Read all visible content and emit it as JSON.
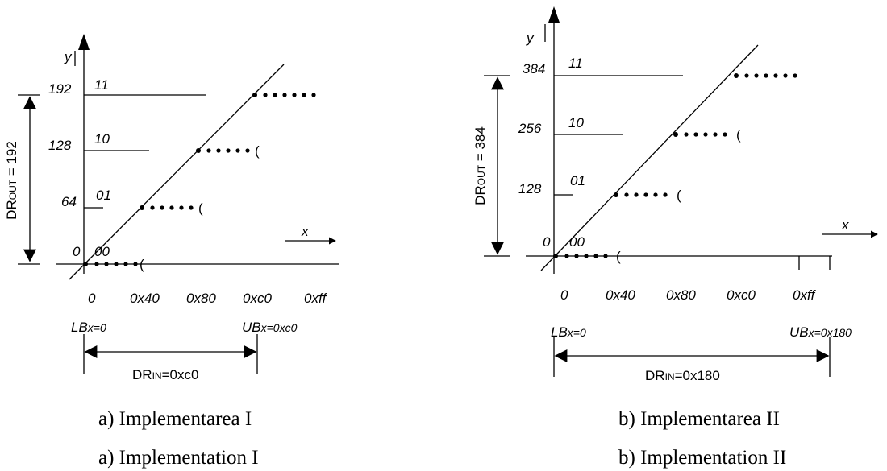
{
  "panel_a": {
    "y_axis_label": "y",
    "x_axis_label": "x",
    "y_ticks": [
      "192",
      "128",
      "64",
      "0"
    ],
    "codes": [
      "11",
      "10",
      "01",
      "00"
    ],
    "x_ticks": [
      "0",
      "0x40",
      "0x80",
      "0xc0",
      "0xff"
    ],
    "paren": "(",
    "dr_out_main": "DR",
    "dr_out_sub": "OUT",
    "dr_out_value": " = 192",
    "lb_main": "LB",
    "lb_rest": "x=0",
    "ub_main": "UB",
    "ub_rest": "x=0xc0",
    "dr_in_main": "DR",
    "dr_in_sub": "IN",
    "dr_in_value": "=0xc0"
  },
  "panel_b": {
    "y_axis_label": "y",
    "x_axis_label": "x",
    "y_ticks": [
      "384",
      "256",
      "128",
      "0"
    ],
    "codes": [
      "11",
      "10",
      "01",
      "00"
    ],
    "x_ticks": [
      "0",
      "0x40",
      "0x80",
      "0xc0",
      "0xff"
    ],
    "paren": "(",
    "dr_out_main": "DR",
    "dr_out_sub": "OUT",
    "dr_out_value": " = 384",
    "lb_main": "LB",
    "lb_rest": "x=0",
    "ub_main": "UB",
    "ub_rest": "x=0x180",
    "dr_in_main": "DR",
    "dr_in_sub": "IN",
    "dr_in_value": "=0x180"
  },
  "captions": {
    "a_ro": "a)  Implementarea I",
    "a_en": "a)  Implementation I",
    "b_ro": "b) Implementarea II",
    "b_en": "b) Implementation II"
  }
}
